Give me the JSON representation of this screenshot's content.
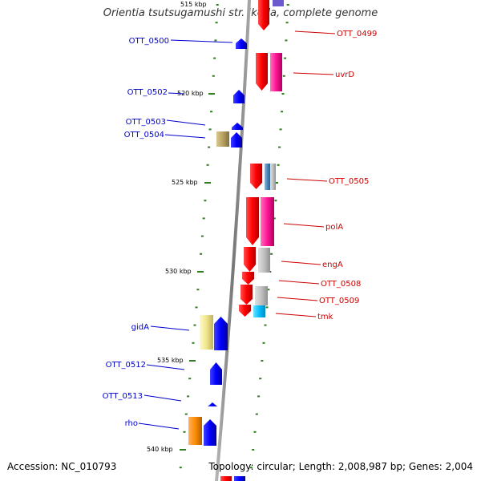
{
  "title": "Orientia tsutsugamushi str. Ikeda, complete genome",
  "footer": {
    "accession": "Accession: NC_010793",
    "topology": "Topology: circular; Length: 2,008,987 bp; Genes: 2,004"
  },
  "colors": {
    "forward_label": "#0000cc",
    "reverse_label": "#cc0000",
    "forward_gene": "#0000ff",
    "reverse_gene": "#ff0000",
    "tick": "#2e7d1e",
    "backbone": "#888888"
  },
  "scale_labels": [
    {
      "label": "515 kbp",
      "kbp": 515
    },
    {
      "label": "520 kbp",
      "kbp": 520
    },
    {
      "label": "525 kbp",
      "kbp": 525
    },
    {
      "label": "530 kbp",
      "kbp": 530
    },
    {
      "label": "535 kbp",
      "kbp": 535
    },
    {
      "label": "540 kbp",
      "kbp": 540
    }
  ],
  "forward_genes": [
    {
      "name": "OTT_0500",
      "color": "#0000ff"
    },
    {
      "name": "OTT_0502",
      "color": "#0000ff"
    },
    {
      "name": "OTT_0503",
      "color": "#0000ff"
    },
    {
      "name": "OTT_0504",
      "color": "#0000ff"
    },
    {
      "name": "gidA",
      "color": "#0000ff"
    },
    {
      "name": "OTT_0512",
      "color": "#0000ff"
    },
    {
      "name": "OTT_0513",
      "color": "#0000ff"
    },
    {
      "name": "rho",
      "color": "#0000ff"
    }
  ],
  "reverse_genes": [
    {
      "name": "OTT_0499",
      "color": "#ff0000"
    },
    {
      "name": "uvrD",
      "color": "#ff0000"
    },
    {
      "name": "OTT_0505",
      "color": "#ff0000"
    },
    {
      "name": "polA",
      "color": "#ff0000"
    },
    {
      "name": "engA",
      "color": "#ff0000"
    },
    {
      "name": "OTT_0508",
      "color": "#ff0000"
    },
    {
      "name": "OTT_0509",
      "color": "#ff0000"
    },
    {
      "name": "tmk",
      "color": "#ff0000"
    }
  ],
  "cog_colors": [
    "#ff1493",
    "#ff1493",
    "#4682b4",
    "#ff1493",
    "#c0c0c0",
    "#c0c0c0",
    "#00bfff",
    "#b8a060",
    "#f0e68c",
    "#ff8c00"
  ]
}
